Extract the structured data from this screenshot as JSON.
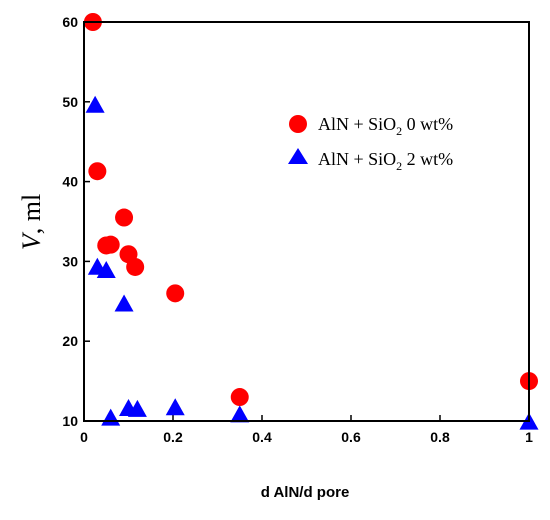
{
  "chart_data": {
    "type": "scatter",
    "title": "",
    "xlabel": "d AlN/d pore",
    "ylabel_var": "V",
    "ylabel_unit": ", ml",
    "xlim": [
      0,
      1
    ],
    "ylim": [
      10,
      60
    ],
    "x_ticks": [
      {
        "value": 0,
        "label": "0"
      },
      {
        "value": 0.2,
        "label": "0.2"
      },
      {
        "value": 0.4,
        "label": "0.4"
      },
      {
        "value": 0.6,
        "label": "0.6"
      },
      {
        "value": 0.8,
        "label": "0.8"
      },
      {
        "value": 1,
        "label": "1"
      }
    ],
    "y_ticks": [
      {
        "value": 10,
        "label": "10"
      },
      {
        "value": 20,
        "label": "20"
      },
      {
        "value": 30,
        "label": "30"
      },
      {
        "value": 40,
        "label": "40"
      },
      {
        "value": 50,
        "label": "50"
      },
      {
        "value": 60,
        "label": "60"
      }
    ],
    "grid": false,
    "legend_position": "top-right",
    "series": [
      {
        "legend_pre": "AlN + SiO",
        "legend_sub": "2",
        "legend_post": " 0 wt%",
        "marker": "circle",
        "color": "#ff0000",
        "points": [
          {
            "x": 0.02,
            "y": 60
          },
          {
            "x": 0.03,
            "y": 41.3
          },
          {
            "x": 0.05,
            "y": 32
          },
          {
            "x": 0.06,
            "y": 32.1
          },
          {
            "x": 0.09,
            "y": 35.5
          },
          {
            "x": 0.1,
            "y": 30.9
          },
          {
            "x": 0.115,
            "y": 29.3
          },
          {
            "x": 0.205,
            "y": 26
          },
          {
            "x": 0.35,
            "y": 13
          },
          {
            "x": 1.0,
            "y": 15
          }
        ]
      },
      {
        "legend_pre": "AlN + SiO",
        "legend_sub": "2",
        "legend_post": " 2 wt%",
        "marker": "triangle",
        "color": "#0000ff",
        "points": [
          {
            "x": 0.025,
            "y": 49.5
          },
          {
            "x": 0.03,
            "y": 29.2
          },
          {
            "x": 0.05,
            "y": 28.8
          },
          {
            "x": 0.09,
            "y": 24.6
          },
          {
            "x": 0.06,
            "y": 10.3
          },
          {
            "x": 0.1,
            "y": 11.5
          },
          {
            "x": 0.12,
            "y": 11.4
          },
          {
            "x": 0.205,
            "y": 11.6
          },
          {
            "x": 0.35,
            "y": 10.7
          },
          {
            "x": 1.0,
            "y": 9.8
          }
        ]
      }
    ]
  }
}
